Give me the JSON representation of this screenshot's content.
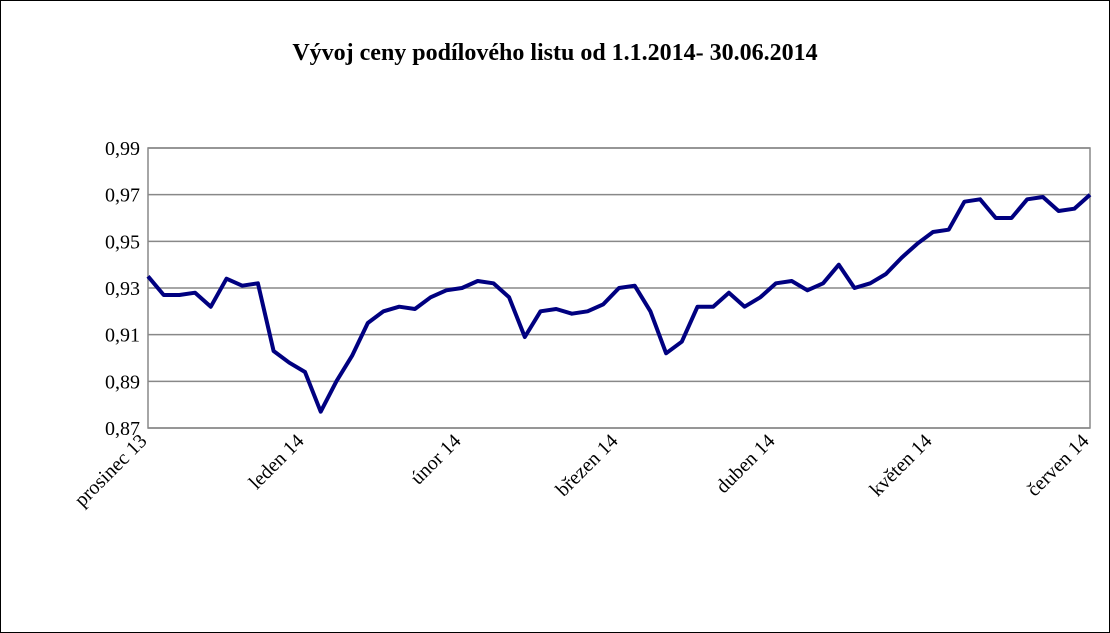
{
  "chart_data": {
    "type": "line",
    "title": "Vývoj ceny podílového listu od 1.1.2014- 30.06.2014",
    "categories": [
      "prosinec 13",
      null,
      null,
      null,
      null,
      null,
      null,
      null,
      null,
      null,
      "leden 14",
      null,
      null,
      null,
      null,
      null,
      null,
      null,
      null,
      null,
      "únor 14",
      null,
      null,
      null,
      null,
      null,
      null,
      null,
      null,
      null,
      "březen 14",
      null,
      null,
      null,
      null,
      null,
      null,
      null,
      null,
      null,
      "duben 14",
      null,
      null,
      null,
      null,
      null,
      null,
      null,
      null,
      null,
      "květen 14",
      null,
      null,
      null,
      null,
      null,
      null,
      null,
      null,
      null,
      "červen 14"
    ],
    "series": [
      {
        "color": "#000080",
        "values": [
          0.935,
          0.927,
          0.927,
          0.928,
          0.922,
          0.934,
          0.931,
          0.932,
          0.903,
          0.898,
          0.894,
          0.877,
          0.89,
          0.901,
          0.915,
          0.92,
          0.922,
          0.921,
          0.926,
          0.929,
          0.93,
          0.933,
          0.932,
          0.926,
          0.909,
          0.92,
          0.921,
          0.919,
          0.92,
          0.923,
          0.93,
          0.931,
          0.92,
          0.902,
          0.907,
          0.922,
          0.922,
          0.928,
          0.922,
          0.926,
          0.932,
          0.933,
          0.929,
          0.932,
          0.94,
          0.93,
          0.932,
          0.936,
          0.943,
          0.949,
          0.954,
          0.955,
          0.967,
          0.968,
          0.96,
          0.96,
          0.968,
          0.969,
          0.963,
          0.964,
          0.97
        ]
      }
    ],
    "ylim": [
      0.87,
      0.99
    ],
    "yticks": [
      {
        "value": 0.87,
        "label": "0,87"
      },
      {
        "value": 0.89,
        "label": "0,89"
      },
      {
        "value": 0.91,
        "label": "0,91"
      },
      {
        "value": 0.93,
        "label": "0,93"
      },
      {
        "value": 0.95,
        "label": "0,95"
      },
      {
        "value": 0.97,
        "label": "0,97"
      },
      {
        "value": 0.99,
        "label": "0,99"
      }
    ],
    "grid": true
  }
}
